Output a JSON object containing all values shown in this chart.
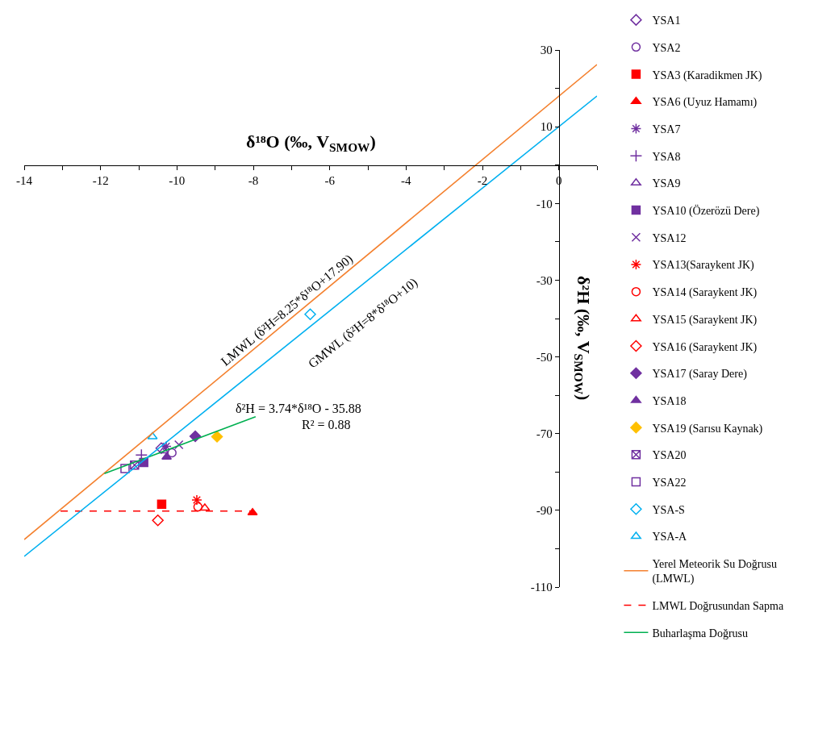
{
  "chart_data": {
    "type": "scatter",
    "xlabel": "δ¹⁸O (‰, V$_{SMOW}$)",
    "ylabel": "δ²H (‰, V$_{SMOW}$)",
    "xlim": [
      -14,
      1
    ],
    "ylim": [
      -110,
      30
    ],
    "xticks": [
      -14,
      {
        "value": -13,
        "label": null
      },
      -12,
      {
        "value": -11,
        "label": null
      },
      -10,
      {
        "value": -9,
        "label": null
      },
      -8,
      {
        "value": -7,
        "label": null
      },
      -6,
      {
        "value": -5,
        "label": null
      },
      -4,
      {
        "value": -3,
        "label": null
      },
      -2,
      {
        "value": -1,
        "label": null
      },
      0,
      {
        "value": 1,
        "label": null
      }
    ],
    "yticks": [
      30,
      {
        "value": 20,
        "label": null
      },
      10,
      {
        "value": 0,
        "label": null
      },
      -10,
      {
        "value": -20,
        "label": null
      },
      -30,
      {
        "value": -40,
        "label": null
      },
      -50,
      {
        "value": -60,
        "label": null
      },
      -70,
      {
        "value": -80,
        "label": null
      },
      -90,
      {
        "value": -100,
        "label": null
      },
      -110
    ],
    "legend": "right",
    "series": [
      {
        "name": "YSA1",
        "color": "#7030a0",
        "marker": "diamond-open",
        "x": [
          -10.41
        ],
        "values": [
          -73.8
        ]
      },
      {
        "name": "YSA2",
        "color": "#7030a0",
        "marker": "circle-open",
        "x": [
          -10.13
        ],
        "values": [
          -75.0
        ]
      },
      {
        "name": "YSA3 (Karadikmen JK)",
        "color": "#ff0000",
        "marker": "square",
        "x": [
          -10.4
        ],
        "values": [
          -88.4
        ]
      },
      {
        "name": "YSA6 (Uyuz Hamamı)",
        "color": "#ff0000",
        "marker": "triangle",
        "x": [
          -8.02
        ],
        "values": [
          -90.6
        ]
      },
      {
        "name": "YSA7",
        "color": "#7030a0",
        "marker": "cross",
        "x": [
          -10.28
        ],
        "values": [
          -73.3
        ]
      },
      {
        "name": "YSA8",
        "color": "#7030a0",
        "marker": "cross",
        "x": [
          -10.93
        ],
        "values": [
          -75.6
        ]
      },
      {
        "name": "YSA9",
        "color": "#7030a0",
        "marker": "triangle-open",
        "x": [
          -10.35
        ],
        "values": [
          -74.5
        ]
      },
      {
        "name": "YSA10 (Özerözü Dere)",
        "color": "#7030a0",
        "marker": "square",
        "x": [
          -10.87
        ],
        "values": [
          -77.5
        ]
      },
      {
        "name": "YSA12",
        "color": "#7030a0",
        "marker": "x",
        "x": [
          -9.95
        ],
        "values": [
          -72.9
        ]
      },
      {
        "name": "YSA13(Saraykent JK)",
        "color": "#ff0000",
        "marker": "cross",
        "x": [
          -9.48
        ],
        "values": [
          -87.3
        ]
      },
      {
        "name": "YSA14 (Saraykent JK)",
        "color": "#ff0000",
        "marker": "circle-open",
        "x": [
          -9.45
        ],
        "values": [
          -89.1
        ]
      },
      {
        "name": "YSA15 (Saraykent JK)",
        "color": "#ff0000",
        "marker": "triangle-open",
        "x": [
          -9.27
        ],
        "values": [
          -89.4
        ]
      },
      {
        "name": "YSA16 (Saraykent JK)",
        "color": "#ff0000",
        "marker": "diamond-open",
        "x": [
          -10.5
        ],
        "values": [
          -92.6
        ]
      },
      {
        "name": "YSA17 (Saray Dere)",
        "color": "#7030a0",
        "marker": "diamond",
        "x": [
          -9.52
        ],
        "values": [
          -70.7
        ]
      },
      {
        "name": "YSA18",
        "color": "#7030a0",
        "marker": "triangle",
        "x": [
          -10.27
        ],
        "values": [
          -76.1
        ]
      },
      {
        "name": "YSA19 (Sarısu Kaynak)",
        "color": "#ffc000",
        "marker": "diamond",
        "x": [
          -8.95
        ],
        "values": [
          -70.8
        ]
      },
      {
        "name": "YSA20",
        "color": "#7030a0",
        "marker": "cross",
        "x": [
          -11.11
        ],
        "values": [
          -78.2
        ]
      },
      {
        "name": "YSA22",
        "color": "#7030a0",
        "marker": "square-open",
        "x": [
          -11.36
        ],
        "values": [
          -79.1
        ]
      },
      {
        "name": "YSA-S",
        "color": "#00b0f0",
        "marker": "diamond-open",
        "x": [
          -6.51
        ],
        "values": [
          -38.9
        ]
      },
      {
        "name": "YSA-A",
        "color": "#00b0f0",
        "marker": "triangle-open",
        "x": [
          -10.64
        ],
        "values": [
          -70.8
        ]
      },
      {
        "name": "Yerel Meteorik Su Doğrusu (LMWL)",
        "type": "line",
        "color": "#f4802e",
        "line_style": "solid",
        "x": [
          -14,
          1
        ],
        "values": [
          -97.6,
          26.2
        ]
      },
      {
        "name": "LMWL Doğrusundan Sapma",
        "type": "line",
        "color": "#ff0000",
        "line_style": "dashed",
        "x": [
          -13.05,
          -7.98
        ],
        "values": [
          -90.2,
          -90.2
        ]
      },
      {
        "name": "Buharlaşma Doğrusu",
        "type": "line",
        "color": "#00b050",
        "line_style": "solid",
        "x": [
          -11.9,
          -7.94
        ],
        "values": [
          -80.4,
          -65.6
        ]
      },
      {
        "type": "line",
        "color": "#00b0f0",
        "line_style": "solid",
        "x": [
          -14,
          1
        ],
        "values": [
          -102,
          18
        ]
      }
    ],
    "annotations": [
      "LMWL (δ²H=8.25*δ¹⁸O+17.90)",
      "GMWL (δ²H=8*δ¹⁸O+10)",
      "δ²H = 3.74*δ¹⁸O - 35.88",
      "R² = 0.88"
    ]
  }
}
